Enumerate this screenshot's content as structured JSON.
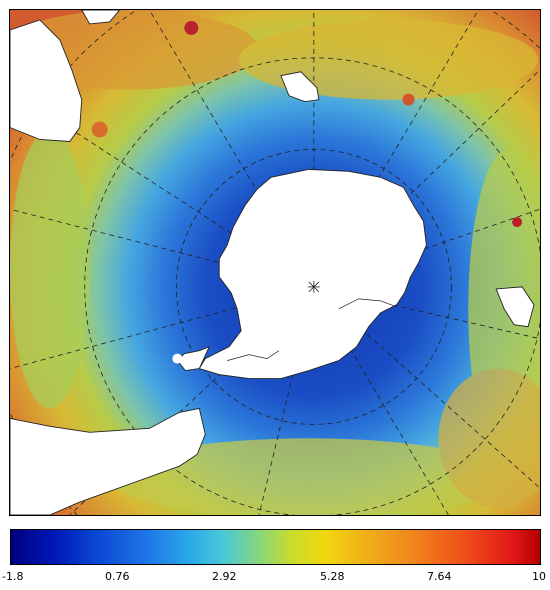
{
  "map": {
    "projection": "south-polar-stereographic",
    "center_marker": "pole-star-marker",
    "colors": {
      "land": "#ffffff",
      "coast": "#222222",
      "graticule": "#222222",
      "cold": "#1a4fc8",
      "cool": "#3c9ae6",
      "mid": "#7ccad0",
      "warm": "#e8d428",
      "hot": "#f08a1c"
    }
  },
  "colorbar": {
    "min": -1.8,
    "max": 10,
    "tick_labels": [
      "-1.8",
      "0.76",
      "2.92",
      "5.28",
      "7.64",
      "10"
    ],
    "tick_values": [
      -1.8,
      0.76,
      2.92,
      5.28,
      7.64,
      10
    ],
    "colormap": "jet"
  }
}
